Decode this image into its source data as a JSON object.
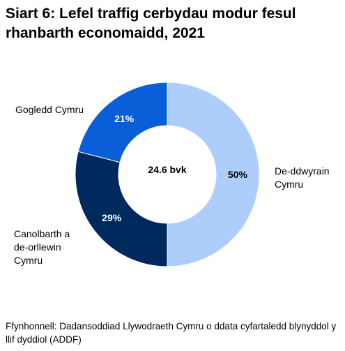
{
  "title": "Siart 6: Lefel traffig cerbydau modur fesul rhanbarth economaidd, 2021",
  "center_label": "24.6 bvk",
  "source": "Ffynhonnell: Dadansoddiad Llywodraeth Cymru o ddata cyfartaledd blynyddol y llif dyddiol (ADDF)",
  "chart_data": {
    "type": "pie",
    "donut": true,
    "title": "Siart 6: Lefel traffig cerbydau modur fesul rhanbarth economaidd, 2021",
    "center_text": "24.6 bvk",
    "categories": [
      "De-ddwyrain Cymru",
      "Canolbarth a de-orllewin Cymru",
      "Gogledd Cymru"
    ],
    "values": [
      50,
      29,
      21
    ],
    "data_labels": [
      "50%",
      "29%",
      "21%"
    ],
    "colors": [
      "#adcdfb",
      "#002a5e",
      "#0a5ed7"
    ],
    "label_colors": [
      "#000000",
      "#ffffff",
      "#ffffff"
    ]
  }
}
